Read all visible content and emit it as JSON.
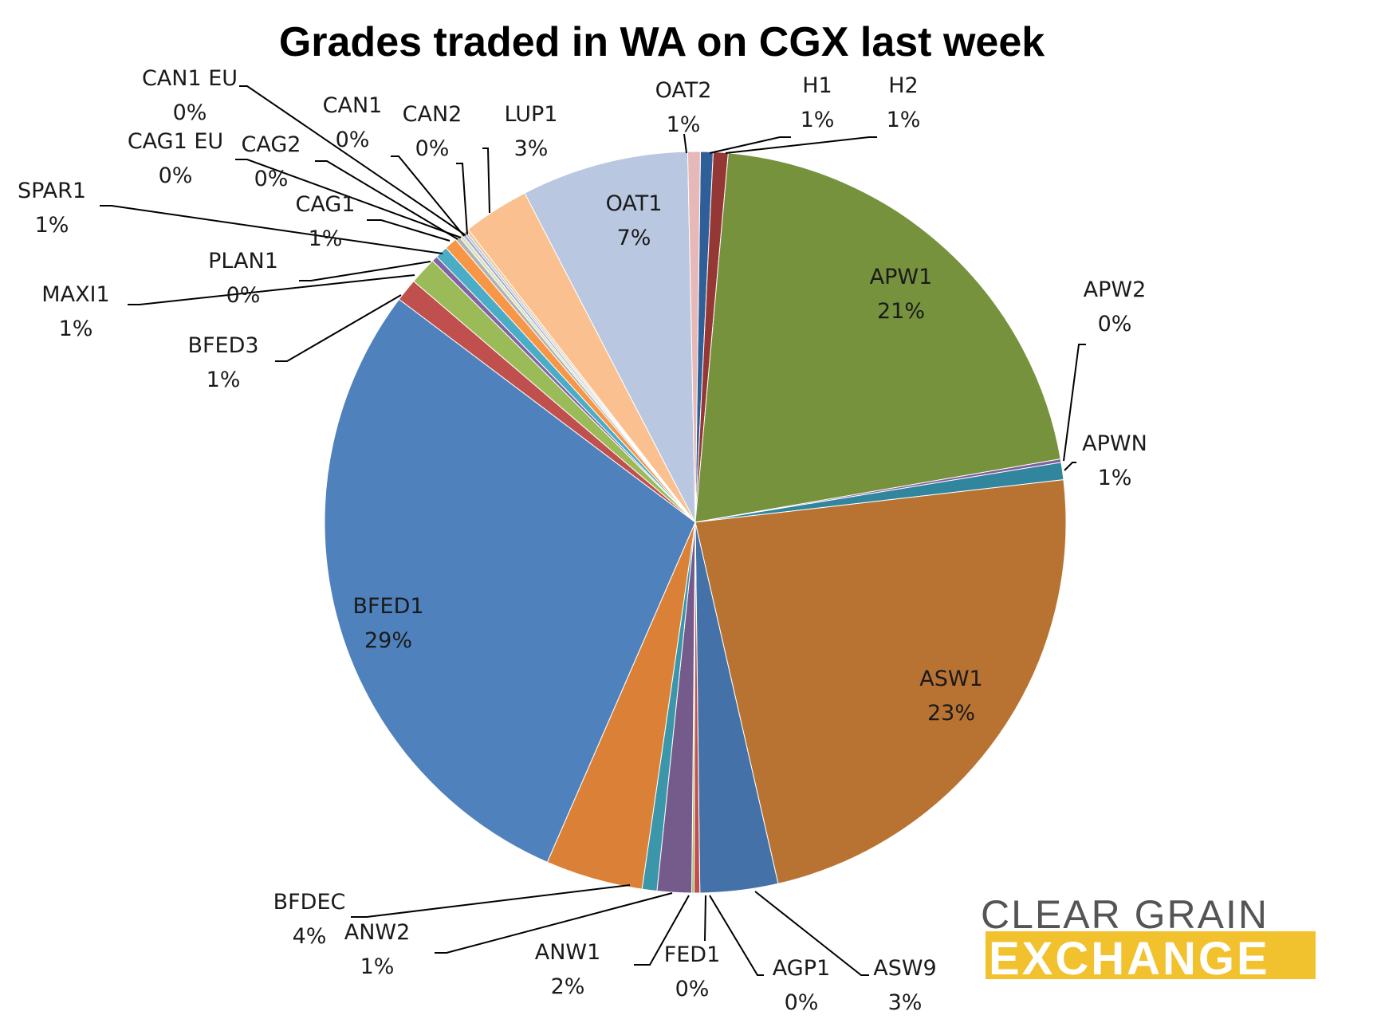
{
  "chart_data": {
    "type": "pie",
    "title": "Grades traded in WA on CGX last week",
    "slices": [
      {
        "label": "H1",
        "pct_label": "1%",
        "value": 0.55,
        "color": "#2f5f98"
      },
      {
        "label": "H2",
        "pct_label": "1%",
        "value": 0.65,
        "color": "#953735"
      },
      {
        "label": "APW1",
        "pct_label": "21%",
        "value": 20.9,
        "color": "#76923c"
      },
      {
        "label": "APW2",
        "pct_label": "0%",
        "value": 0.15,
        "color": "#7f5f9f"
      },
      {
        "label": "APWN",
        "pct_label": "1%",
        "value": 0.75,
        "color": "#31859c"
      },
      {
        "label": "ASW1",
        "pct_label": "23%",
        "value": 23.3,
        "color": "#b87333"
      },
      {
        "label": "ASW9",
        "pct_label": "3%",
        "value": 3.4,
        "color": "#4472a8"
      },
      {
        "label": "AGP1",
        "pct_label": "0%",
        "value": 0.25,
        "color": "#c0504d"
      },
      {
        "label": "FED1",
        "pct_label": "0%",
        "value": 0.1,
        "color": "#9bbb59"
      },
      {
        "label": "ANW1",
        "pct_label": "2%",
        "value": 1.5,
        "color": "#755a8c"
      },
      {
        "label": "ANW2",
        "pct_label": "1%",
        "value": 0.65,
        "color": "#3a96a8"
      },
      {
        "label": "BFDEC",
        "pct_label": "4%",
        "value": 4.25,
        "color": "#da8137"
      },
      {
        "label": "BFED1",
        "pct_label": "29%",
        "value": 28.8,
        "color": "#4f81bd"
      },
      {
        "label": "BFED3",
        "pct_label": "1%",
        "value": 1.0,
        "color": "#c0504d"
      },
      {
        "label": "MAXI1",
        "pct_label": "1%",
        "value": 1.2,
        "color": "#9bbb59"
      },
      {
        "label": "PLAN1",
        "pct_label": "0%",
        "value": 0.25,
        "color": "#8064a2"
      },
      {
        "label": "SPAR1",
        "pct_label": "1%",
        "value": 0.55,
        "color": "#4bacc6"
      },
      {
        "label": "CAG1",
        "pct_label": "1%",
        "value": 0.55,
        "color": "#f79646"
      },
      {
        "label": "CAG2",
        "pct_label": "0%",
        "value": 0.2,
        "color": "#b3b3b3"
      },
      {
        "label": "CAG1 EU",
        "pct_label": "0%",
        "value": 0.15,
        "color": "#d7e4bd"
      },
      {
        "label": "CAN1",
        "pct_label": "0%",
        "value": 0.12,
        "color": "#b2a1c7"
      },
      {
        "label": "CAN1 EU",
        "pct_label": "0%",
        "value": 0.1,
        "color": "#92cddc"
      },
      {
        "label": "CAN2",
        "pct_label": "0%",
        "value": 0.12,
        "color": "#fac090"
      },
      {
        "label": "LUP1",
        "pct_label": "3%",
        "value": 2.9,
        "color": "#fac090"
      },
      {
        "label": "OAT1",
        "pct_label": "7%",
        "value": 7.3,
        "color": "#b9c7e0"
      },
      {
        "label": "OAT2",
        "pct_label": "1%",
        "value": 0.55,
        "color": "#e6b9b8"
      }
    ]
  },
  "logo": {
    "top_text": "CLEAR GRAIN",
    "bottom_text": "EXCHANGE",
    "top_color": "#555555",
    "bar_color": "#f2c12e"
  }
}
